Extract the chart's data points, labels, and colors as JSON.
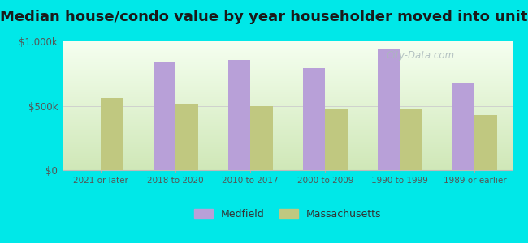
{
  "title": "Median house/condo value by year householder moved into unit",
  "categories": [
    "2021 or later",
    "2018 to 2020",
    "2010 to 2017",
    "2000 to 2009",
    "1990 to 1999",
    "1989 or earlier"
  ],
  "medfield_values": [
    0,
    840000,
    855000,
    790000,
    940000,
    680000
  ],
  "massachusetts_values": [
    560000,
    515000,
    500000,
    470000,
    480000,
    425000
  ],
  "medfield_color": "#b8a0d8",
  "massachusetts_color": "#c0c880",
  "background_outer": "#00e8e8",
  "background_inner_bottom": "#d8ecc8",
  "background_inner_top": "#f8fff4",
  "ylim": [
    0,
    1000000
  ],
  "ytick_labels": [
    "$0",
    "$500k",
    "$1,000k"
  ],
  "legend_labels": [
    "Medfield",
    "Massachusetts"
  ],
  "title_fontsize": 13,
  "watermark": "City-Data.com"
}
